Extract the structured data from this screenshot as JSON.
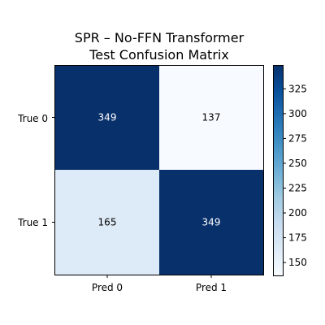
{
  "chart_data": {
    "type": "heatmap",
    "title_lines": [
      "SPR – No-FFN Transformer",
      "Test Confusion Matrix"
    ],
    "row_labels": [
      "True 0",
      "True 1"
    ],
    "col_labels": [
      "Pred 0",
      "Pred 1"
    ],
    "values": [
      [
        349,
        137
      ],
      [
        165,
        349
      ]
    ],
    "colormap": "Blues",
    "value_range": [
      137,
      349
    ],
    "colorbar": {
      "ticks": [
        150,
        175,
        200,
        225,
        250,
        275,
        300,
        325
      ],
      "tick_labels": [
        "150",
        "175",
        "200",
        "225",
        "250",
        "275",
        "300",
        "325"
      ]
    },
    "grid": false,
    "legend": "none"
  },
  "colors": {
    "text_on_dark": "#ffffff",
    "text_on_light": "#000000",
    "blues": [
      "#f7fbff",
      "#deebf7",
      "#c6dbef",
      "#9ecae1",
      "#6baed6",
      "#4292c6",
      "#2171b5",
      "#08519c",
      "#08306b"
    ]
  }
}
